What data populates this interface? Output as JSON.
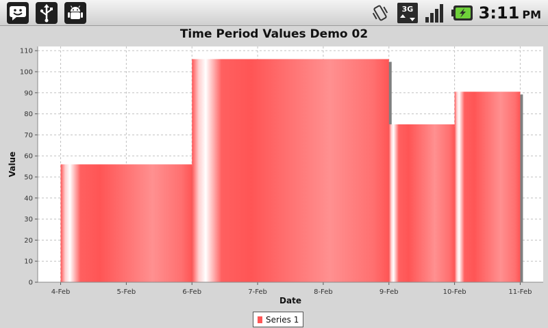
{
  "status_bar": {
    "left_icons": [
      "smiley-notification-icon",
      "usb-icon",
      "android-debug-icon"
    ],
    "right_icons": [
      "vibrate-icon",
      "network-3g-icon",
      "signal-strength-icon",
      "battery-charging-icon"
    ],
    "network_label": "3G",
    "time": "3:11",
    "ampm": "PM"
  },
  "chart_data": {
    "type": "bar",
    "title": "Time Period Values Demo 02",
    "xlabel": "Date",
    "ylabel": "Value",
    "x_ticks": [
      "4-Feb",
      "5-Feb",
      "6-Feb",
      "7-Feb",
      "8-Feb",
      "9-Feb",
      "10-Feb",
      "11-Feb"
    ],
    "y_ticks": [
      0,
      10,
      20,
      30,
      40,
      50,
      60,
      70,
      80,
      90,
      100,
      110
    ],
    "ylim": [
      0,
      112
    ],
    "xlim": [
      "3.65-Feb",
      "11.35-Feb"
    ],
    "series": [
      {
        "name": "Series 1",
        "bars": [
          {
            "start": "4-Feb",
            "end": "6-Feb",
            "value": 56
          },
          {
            "start": "6-Feb",
            "end": "9-Feb",
            "value": 106
          },
          {
            "start": "9-Feb",
            "end": "10-Feb",
            "value": 75
          },
          {
            "start": "10-Feb",
            "end": "11-Feb",
            "value": 90.5
          }
        ]
      }
    ],
    "grid": true,
    "legend_position": "bottom-center"
  },
  "colors": {
    "bar": "#ff5555",
    "bar_highlight": "#ffffff",
    "shadow": "#808080",
    "plot_background": "#ffffff",
    "grid": "#c0c0c0"
  }
}
